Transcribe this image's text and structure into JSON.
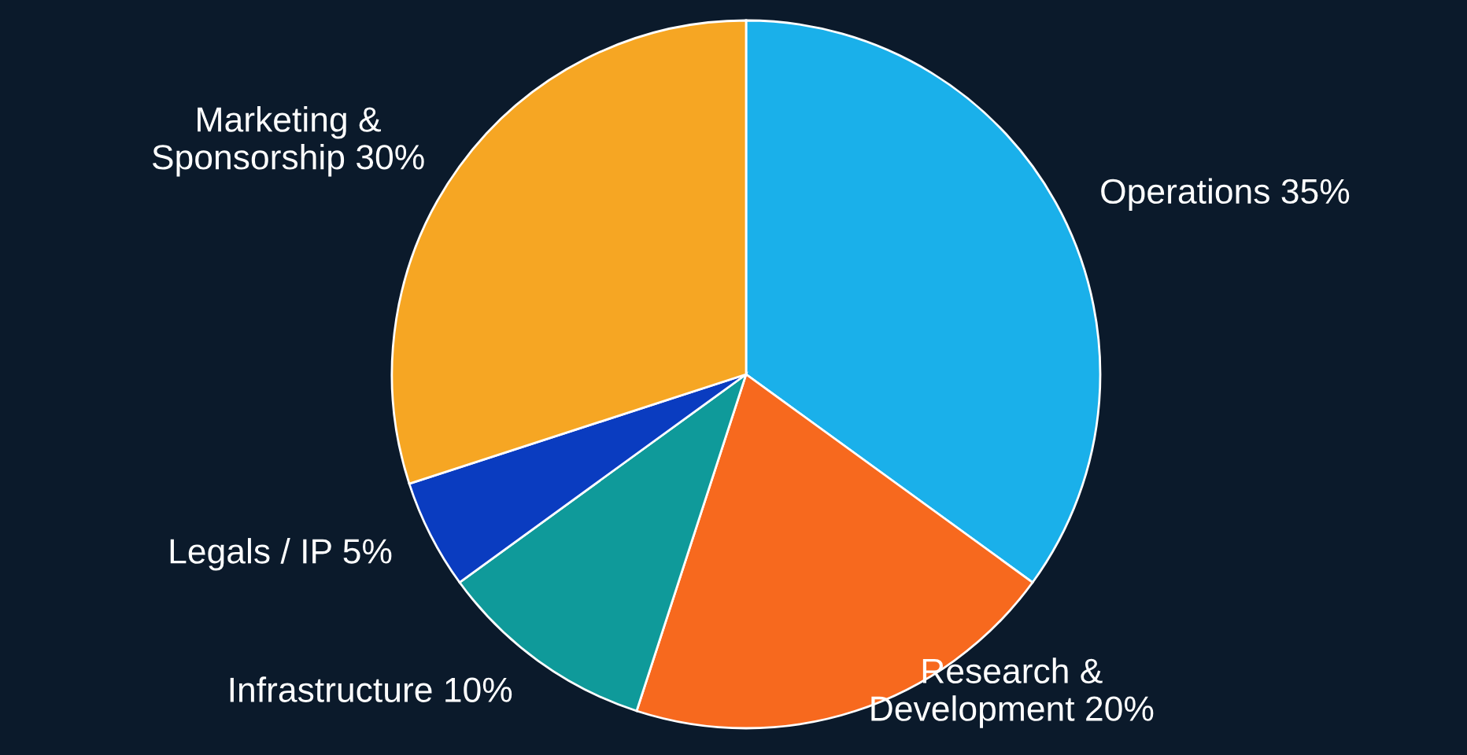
{
  "chart_data": {
    "type": "pie",
    "categories": [
      "Operations",
      "Research &\nDevelopment",
      "Infrastructure",
      "Legals / IP",
      "Marketing &\nSponsorship"
    ],
    "values": [
      35,
      20,
      10,
      5,
      30
    ],
    "value_labels": [
      "35%",
      "20%",
      "10%",
      "5%",
      "30%"
    ],
    "colors": [
      "#1ab0ea",
      "#f7691e",
      "#0f9a9a",
      "#0a3cc0",
      "#f6a623"
    ],
    "legend": false
  }
}
